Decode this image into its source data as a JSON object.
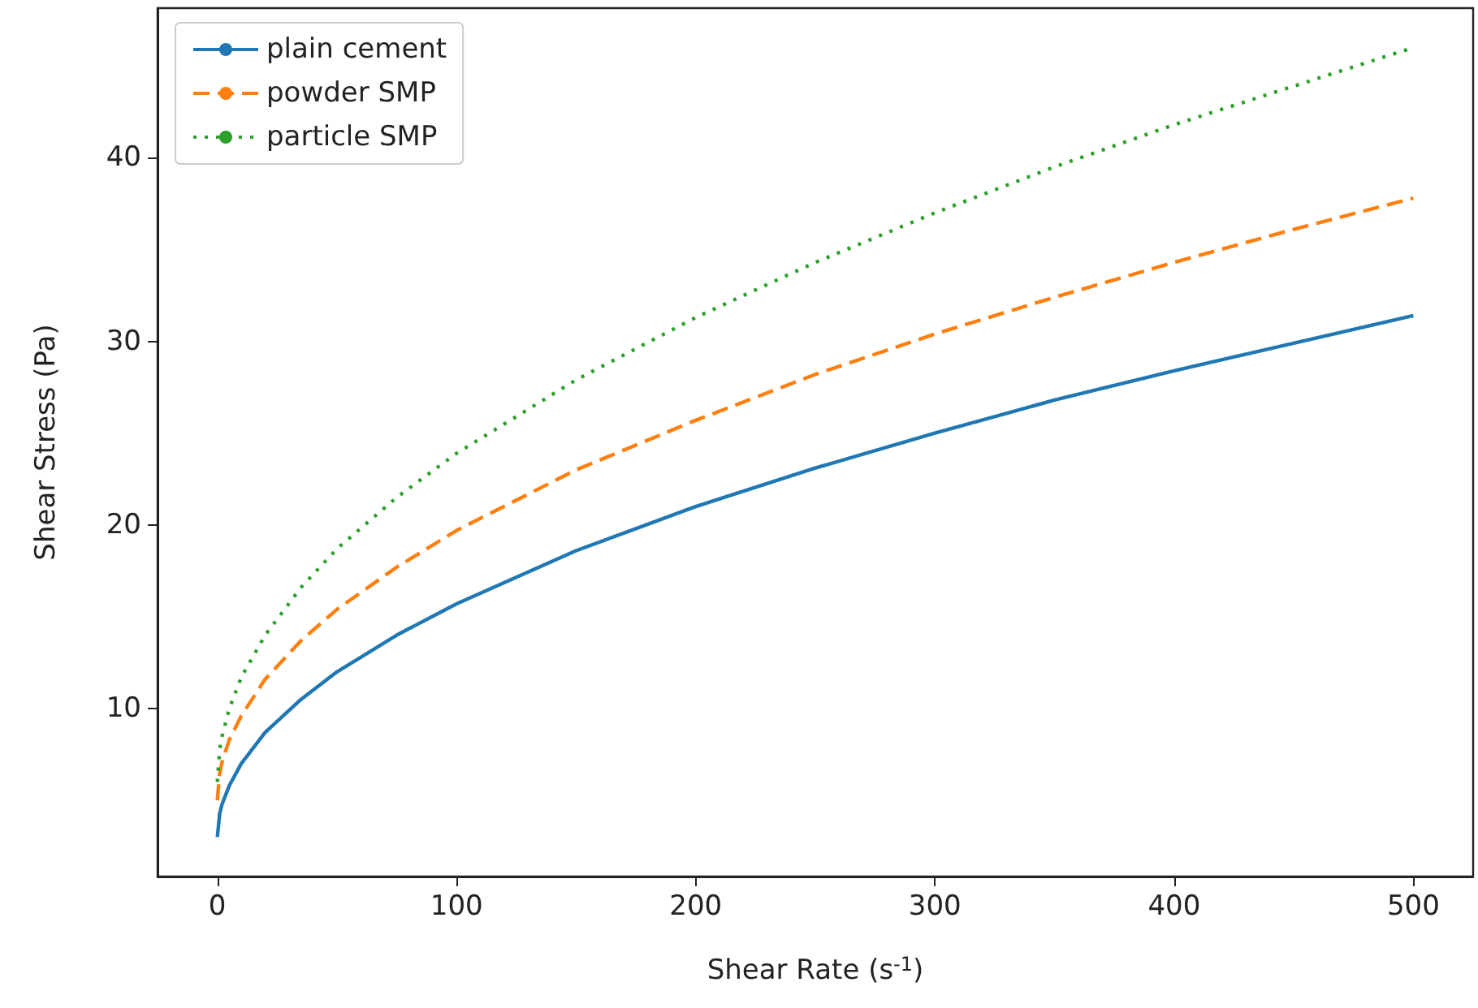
{
  "chart_data": {
    "type": "line",
    "xlabel": "Shear Rate (s$^{-1}$)",
    "ylabel": "Shear Stress (Pa)",
    "x": [
      0,
      1,
      2,
      5,
      10,
      20,
      35,
      50,
      75,
      100,
      150,
      200,
      250,
      300,
      350,
      400,
      450,
      500
    ],
    "series": [
      {
        "name": "plain cement",
        "color": "#1f77b4",
        "line_style": "solid",
        "values": [
          3,
          4.3,
          4.8,
          5.8,
          7.0,
          8.7,
          10.5,
          12.0,
          14.0,
          15.7,
          18.6,
          21.0,
          23.1,
          25.0,
          26.8,
          28.4,
          29.9,
          31.4
        ]
      },
      {
        "name": "powder SMP",
        "color": "#ff7f0e",
        "line_style": "dashed",
        "values": [
          5,
          6.5,
          7.1,
          8.3,
          9.6,
          11.6,
          13.7,
          15.4,
          17.7,
          19.7,
          23.0,
          25.7,
          28.2,
          30.4,
          32.4,
          34.3,
          36.1,
          37.8
        ]
      },
      {
        "name": "particle SMP",
        "color": "#2ca02c",
        "line_style": "dotted",
        "values": [
          6,
          7.8,
          8.5,
          10.0,
          11.7,
          14.0,
          16.6,
          18.7,
          21.5,
          23.9,
          27.9,
          31.3,
          34.3,
          37.0,
          39.5,
          41.8,
          43.9,
          46.0
        ]
      }
    ],
    "xlim": [
      -25,
      525
    ],
    "ylim": [
      0.85,
      48.15
    ],
    "xticks": [
      0,
      100,
      200,
      300,
      400,
      500
    ],
    "yticks": [
      10,
      20,
      30,
      40
    ],
    "grid": false,
    "legend": "top left",
    "marker": "none"
  }
}
